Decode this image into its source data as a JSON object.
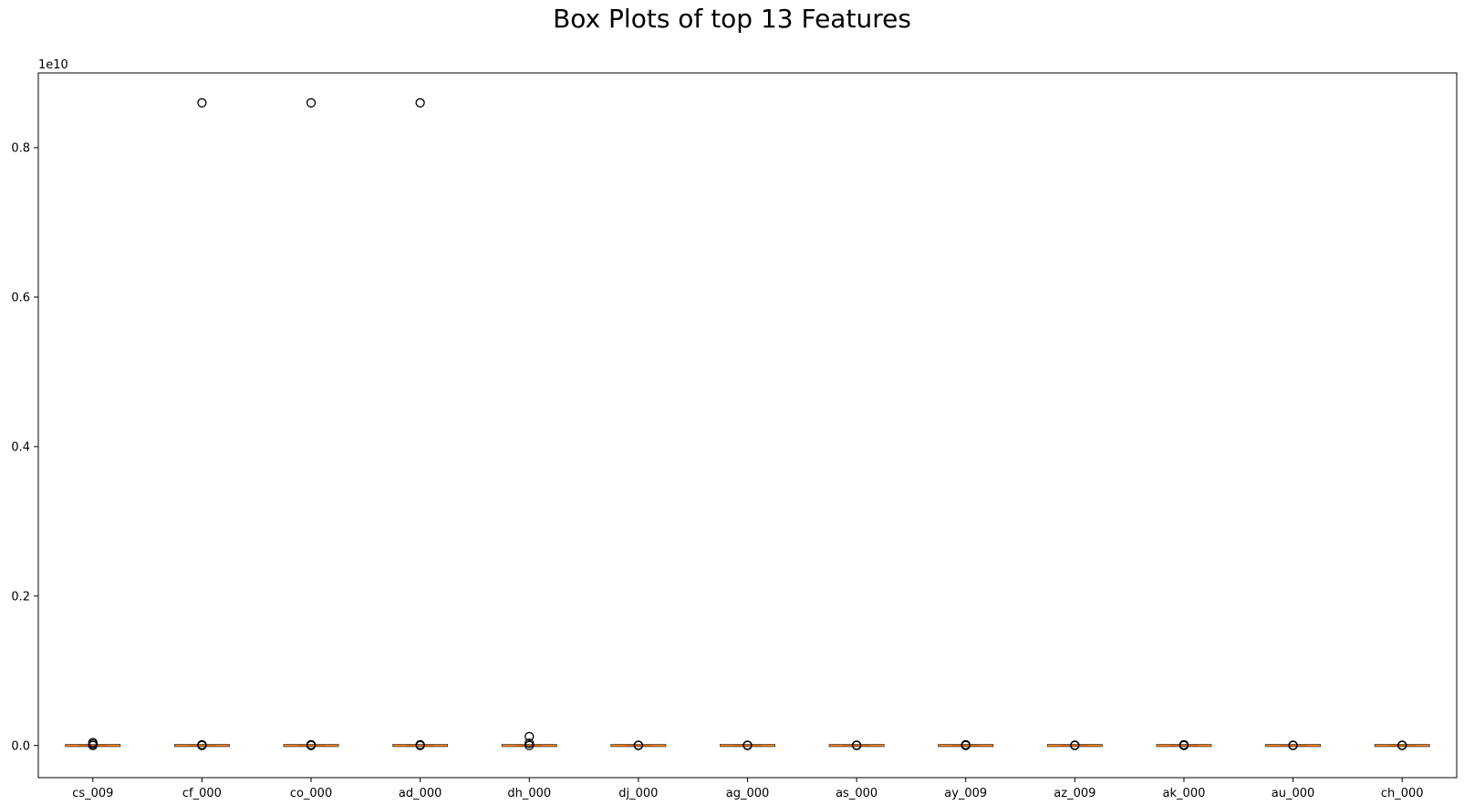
{
  "chart_data": {
    "type": "box",
    "title": "Box Plots of top 13 Features",
    "xlabel": "",
    "ylabel": "",
    "y_scale_label": "1e10",
    "y_scale": 10000000000,
    "ylim": [
      -0.043,
      0.9
    ],
    "yticks": [
      0.0,
      0.2,
      0.4,
      0.6,
      0.8
    ],
    "ytick_labels": [
      "0.0",
      "0.2",
      "0.4",
      "0.6",
      "0.8"
    ],
    "grid": false,
    "categories": [
      "cs_009",
      "cf_000",
      "co_000",
      "ad_000",
      "dh_000",
      "dj_000",
      "ag_000",
      "as_000",
      "ay_009",
      "az_009",
      "ak_000",
      "au_000",
      "ch_000"
    ],
    "boxes": [
      {
        "name": "cs_009",
        "q1": 0,
        "median": 0,
        "q3": 0,
        "whisker_low": 0,
        "whisker_high": 0,
        "outliers": [
          0.0,
          0.002,
          0.004
        ]
      },
      {
        "name": "cf_000",
        "q1": 0,
        "median": 0,
        "q3": 0,
        "whisker_low": 0,
        "whisker_high": 0,
        "outliers": [
          0.0,
          0.001,
          0.86
        ]
      },
      {
        "name": "co_000",
        "q1": 0,
        "median": 0,
        "q3": 0,
        "whisker_low": 0,
        "whisker_high": 0,
        "outliers": [
          0.0,
          0.001,
          0.86
        ]
      },
      {
        "name": "ad_000",
        "q1": 0,
        "median": 0,
        "q3": 0,
        "whisker_low": 0,
        "whisker_high": 0,
        "outliers": [
          0.0,
          0.001,
          0.86
        ]
      },
      {
        "name": "dh_000",
        "q1": 0,
        "median": 0,
        "q3": 0,
        "whisker_low": 0,
        "whisker_high": 0,
        "outliers": [
          0.0,
          0.003,
          0.012
        ]
      },
      {
        "name": "dj_000",
        "q1": 0,
        "median": 0,
        "q3": 0,
        "whisker_low": 0,
        "whisker_high": 0,
        "outliers": [
          0.0,
          0.0005
        ]
      },
      {
        "name": "ag_000",
        "q1": 0,
        "median": 0,
        "q3": 0,
        "whisker_low": 0,
        "whisker_high": 0,
        "outliers": [
          0.0,
          0.0005
        ]
      },
      {
        "name": "as_000",
        "q1": 0,
        "median": 0,
        "q3": 0,
        "whisker_low": 0,
        "whisker_high": 0,
        "outliers": [
          0.0,
          0.0005
        ]
      },
      {
        "name": "ay_009",
        "q1": 0,
        "median": 0,
        "q3": 0,
        "whisker_low": 0,
        "whisker_high": 0,
        "outliers": [
          0.0,
          0.001
        ]
      },
      {
        "name": "az_009",
        "q1": 0,
        "median": 0,
        "q3": 0,
        "whisker_low": 0,
        "whisker_high": 0,
        "outliers": [
          0.0,
          0.0005
        ]
      },
      {
        "name": "ak_000",
        "q1": 0,
        "median": 0,
        "q3": 0,
        "whisker_low": 0,
        "whisker_high": 0,
        "outliers": [
          0.0,
          0.001
        ]
      },
      {
        "name": "au_000",
        "q1": 0,
        "median": 0,
        "q3": 0,
        "whisker_low": 0,
        "whisker_high": 0,
        "outliers": [
          0.0,
          0.0005
        ]
      },
      {
        "name": "ch_000",
        "q1": 0,
        "median": 0,
        "q3": 0,
        "whisker_low": 0,
        "whisker_high": 0,
        "outliers": [
          0.0,
          0.0005
        ]
      }
    ],
    "colors": {
      "median": "#ff7f0e",
      "box": "#000000",
      "outlier": "#000000",
      "background": "#ffffff"
    }
  }
}
